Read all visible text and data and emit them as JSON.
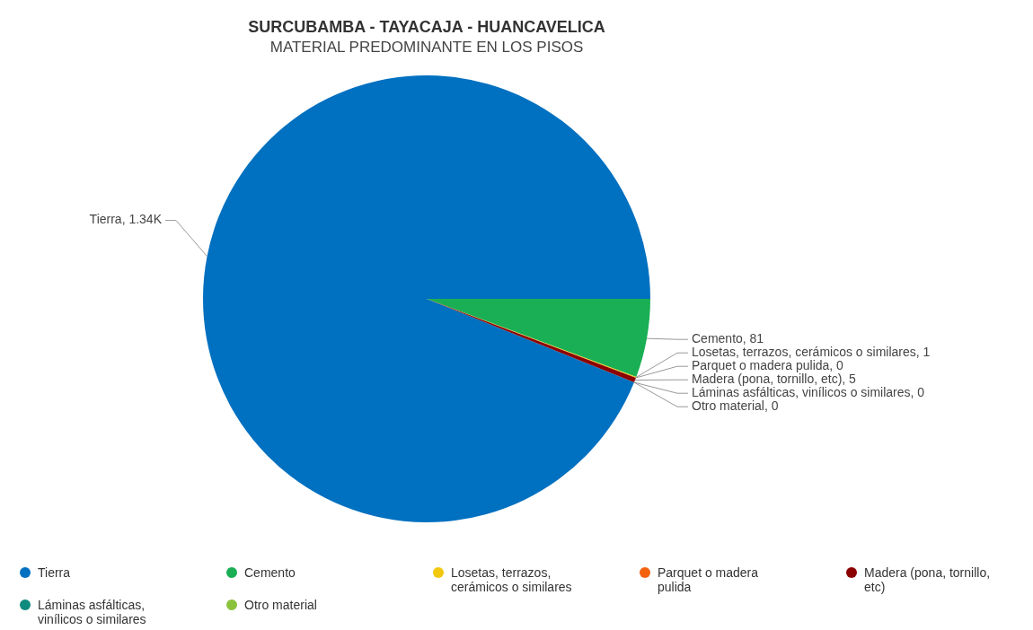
{
  "chart_data": {
    "type": "pie",
    "title": "SURCUBAMBA - TAYACAJA - HUANCAVELICA",
    "subtitle": "MATERIAL PREDOMINANTE EN LOS PISOS",
    "categories": [
      "Tierra",
      "Cemento",
      "Losetas, terrazos, cerámicos o similares",
      "Parquet o madera pulida",
      "Madera (pona, tornillo, etc)",
      "Láminas asfálticas, vinílicos o similares",
      "Otro material"
    ],
    "values": [
      1340,
      81,
      1,
      0,
      5,
      0,
      0
    ],
    "value_labels": [
      "Tierra, 1.34K",
      "Cemento, 81",
      "Losetas, terrazos, cerámicos o similares, 1",
      "Parquet o madera pulida, 0",
      "Madera (pona, tornillo, etc), 5",
      "Láminas asfálticas, vinílicos o similares, 0",
      "Otro material, 0"
    ],
    "colors": [
      "#0070c0",
      "#1aaf54",
      "#f2c80f",
      "#f2620f",
      "#8b0000",
      "#0f8a7e",
      "#8ac23c"
    ],
    "legend": "bottom"
  }
}
